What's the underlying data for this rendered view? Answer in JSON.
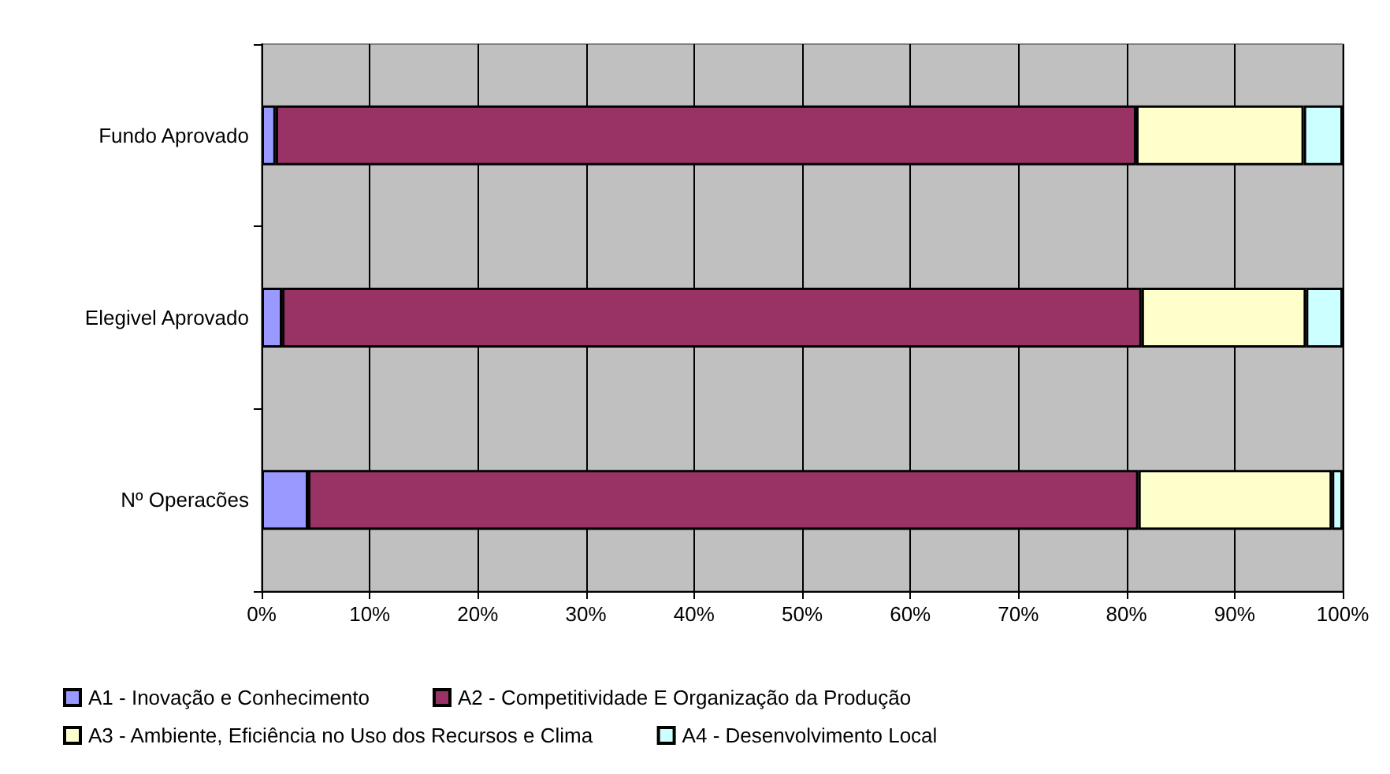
{
  "chart_data": {
    "type": "bar",
    "orientation": "horizontal",
    "stacked": true,
    "categories": [
      "Fundo Aprovado",
      "Elegivel Aprovado",
      "Nº Operacões"
    ],
    "series": [
      {
        "name": "A1 - Inovação e Conhecimento",
        "color": "#9999ff",
        "values": [
          1.3,
          1.9,
          4.3
        ]
      },
      {
        "name": "A2 - Competitividade E Organização da Produção",
        "color": "#993366",
        "values": [
          79.6,
          79.5,
          76.8
        ]
      },
      {
        "name": "A3 - Ambiente, Eficiência no Uso dos Recursos e Clima",
        "color": "#ffffcc",
        "values": [
          15.5,
          15.2,
          17.9
        ]
      },
      {
        "name": "A4 - Desenvolvimento Local",
        "color": "#ccffff",
        "values": [
          3.6,
          3.4,
          1.0
        ]
      }
    ],
    "xlim": [
      0,
      100
    ],
    "xticks": [
      {
        "value": 0,
        "label": "0%"
      },
      {
        "value": 10,
        "label": "10%"
      },
      {
        "value": 20,
        "label": "20%"
      },
      {
        "value": 30,
        "label": "30%"
      },
      {
        "value": 40,
        "label": "40%"
      },
      {
        "value": 50,
        "label": "50%"
      },
      {
        "value": 60,
        "label": "60%"
      },
      {
        "value": 70,
        "label": "70%"
      },
      {
        "value": 80,
        "label": "80%"
      },
      {
        "value": 90,
        "label": "90%"
      },
      {
        "value": 100,
        "label": "100%"
      }
    ],
    "grid": "x",
    "legend": "bottom"
  }
}
